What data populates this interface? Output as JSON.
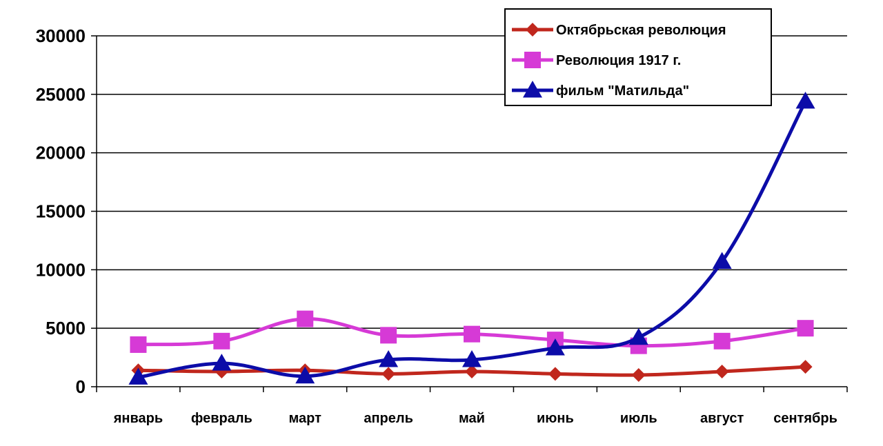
{
  "chart_data": {
    "type": "line",
    "title": "",
    "xlabel": "",
    "ylabel": "",
    "categories": [
      "январь",
      "февраль",
      "март",
      "апрель",
      "май",
      "июнь",
      "июль",
      "август",
      "сентябрь"
    ],
    "ylim": [
      0,
      30000
    ],
    "yticks": [
      0,
      5000,
      10000,
      15000,
      20000,
      25000,
      30000
    ],
    "grid": "horizontal",
    "legend_position": "top-right",
    "series": [
      {
        "name": "Октябрьская революция",
        "color": "#c0271d",
        "marker": "diamond",
        "values": [
          1400,
          1300,
          1400,
          1100,
          1300,
          1100,
          1000,
          1300,
          1700
        ]
      },
      {
        "name": "Революция 1917 г.",
        "color": "#d63ad6",
        "marker": "square",
        "values": [
          3600,
          3900,
          5800,
          4400,
          4500,
          4000,
          3500,
          3900,
          5000
        ]
      },
      {
        "name": "фильм \"Матильда\"",
        "color": "#0c0ca8",
        "marker": "triangle",
        "values": [
          800,
          2000,
          900,
          2300,
          2300,
          3300,
          4200,
          10700,
          24400
        ]
      }
    ]
  }
}
